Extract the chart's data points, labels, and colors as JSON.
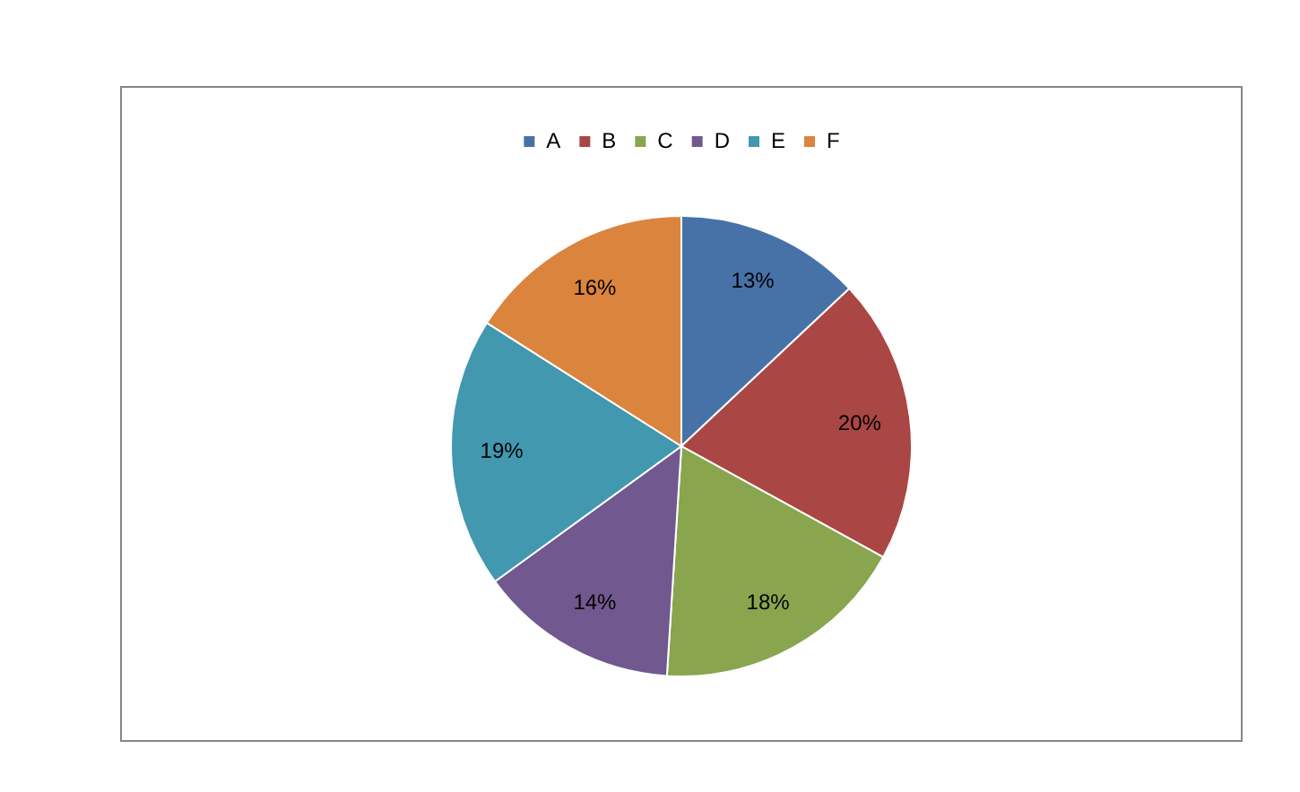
{
  "chart_data": {
    "type": "pie",
    "categories": [
      "A",
      "B",
      "C",
      "D",
      "E",
      "F"
    ],
    "values": [
      13,
      20,
      18,
      14,
      19,
      16
    ],
    "colors": [
      "#4672a8",
      "#aa4643",
      "#89a54e",
      "#71588f",
      "#4198af",
      "#db843d"
    ],
    "value_labels": [
      "13%",
      "20%",
      "18%",
      "14%",
      "19%",
      "16%"
    ],
    "legend": "top"
  }
}
